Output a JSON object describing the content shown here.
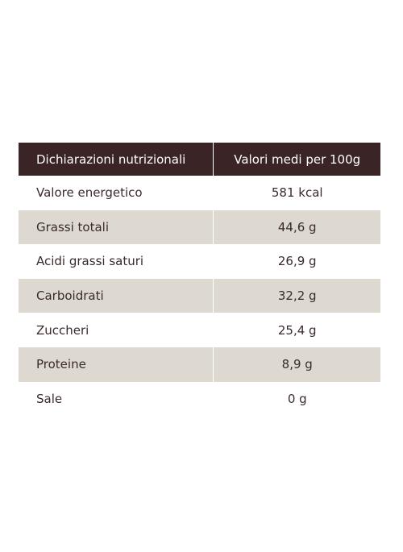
{
  "table": {
    "header": [
      "Dichiarazioni nutrizionali",
      "Valori medi per 100g"
    ],
    "rows": [
      [
        "Valore energetico",
        "581 kcal"
      ],
      [
        "Grassi totali",
        "44,6 g"
      ],
      [
        "Acidi grassi saturi",
        "26,9 g"
      ],
      [
        "Carboidrati",
        "32,2 g"
      ],
      [
        "Zuccheri",
        "25,4 g"
      ],
      [
        "Proteine",
        "8,9 g"
      ],
      [
        "Sale",
        "0 g"
      ]
    ]
  }
}
